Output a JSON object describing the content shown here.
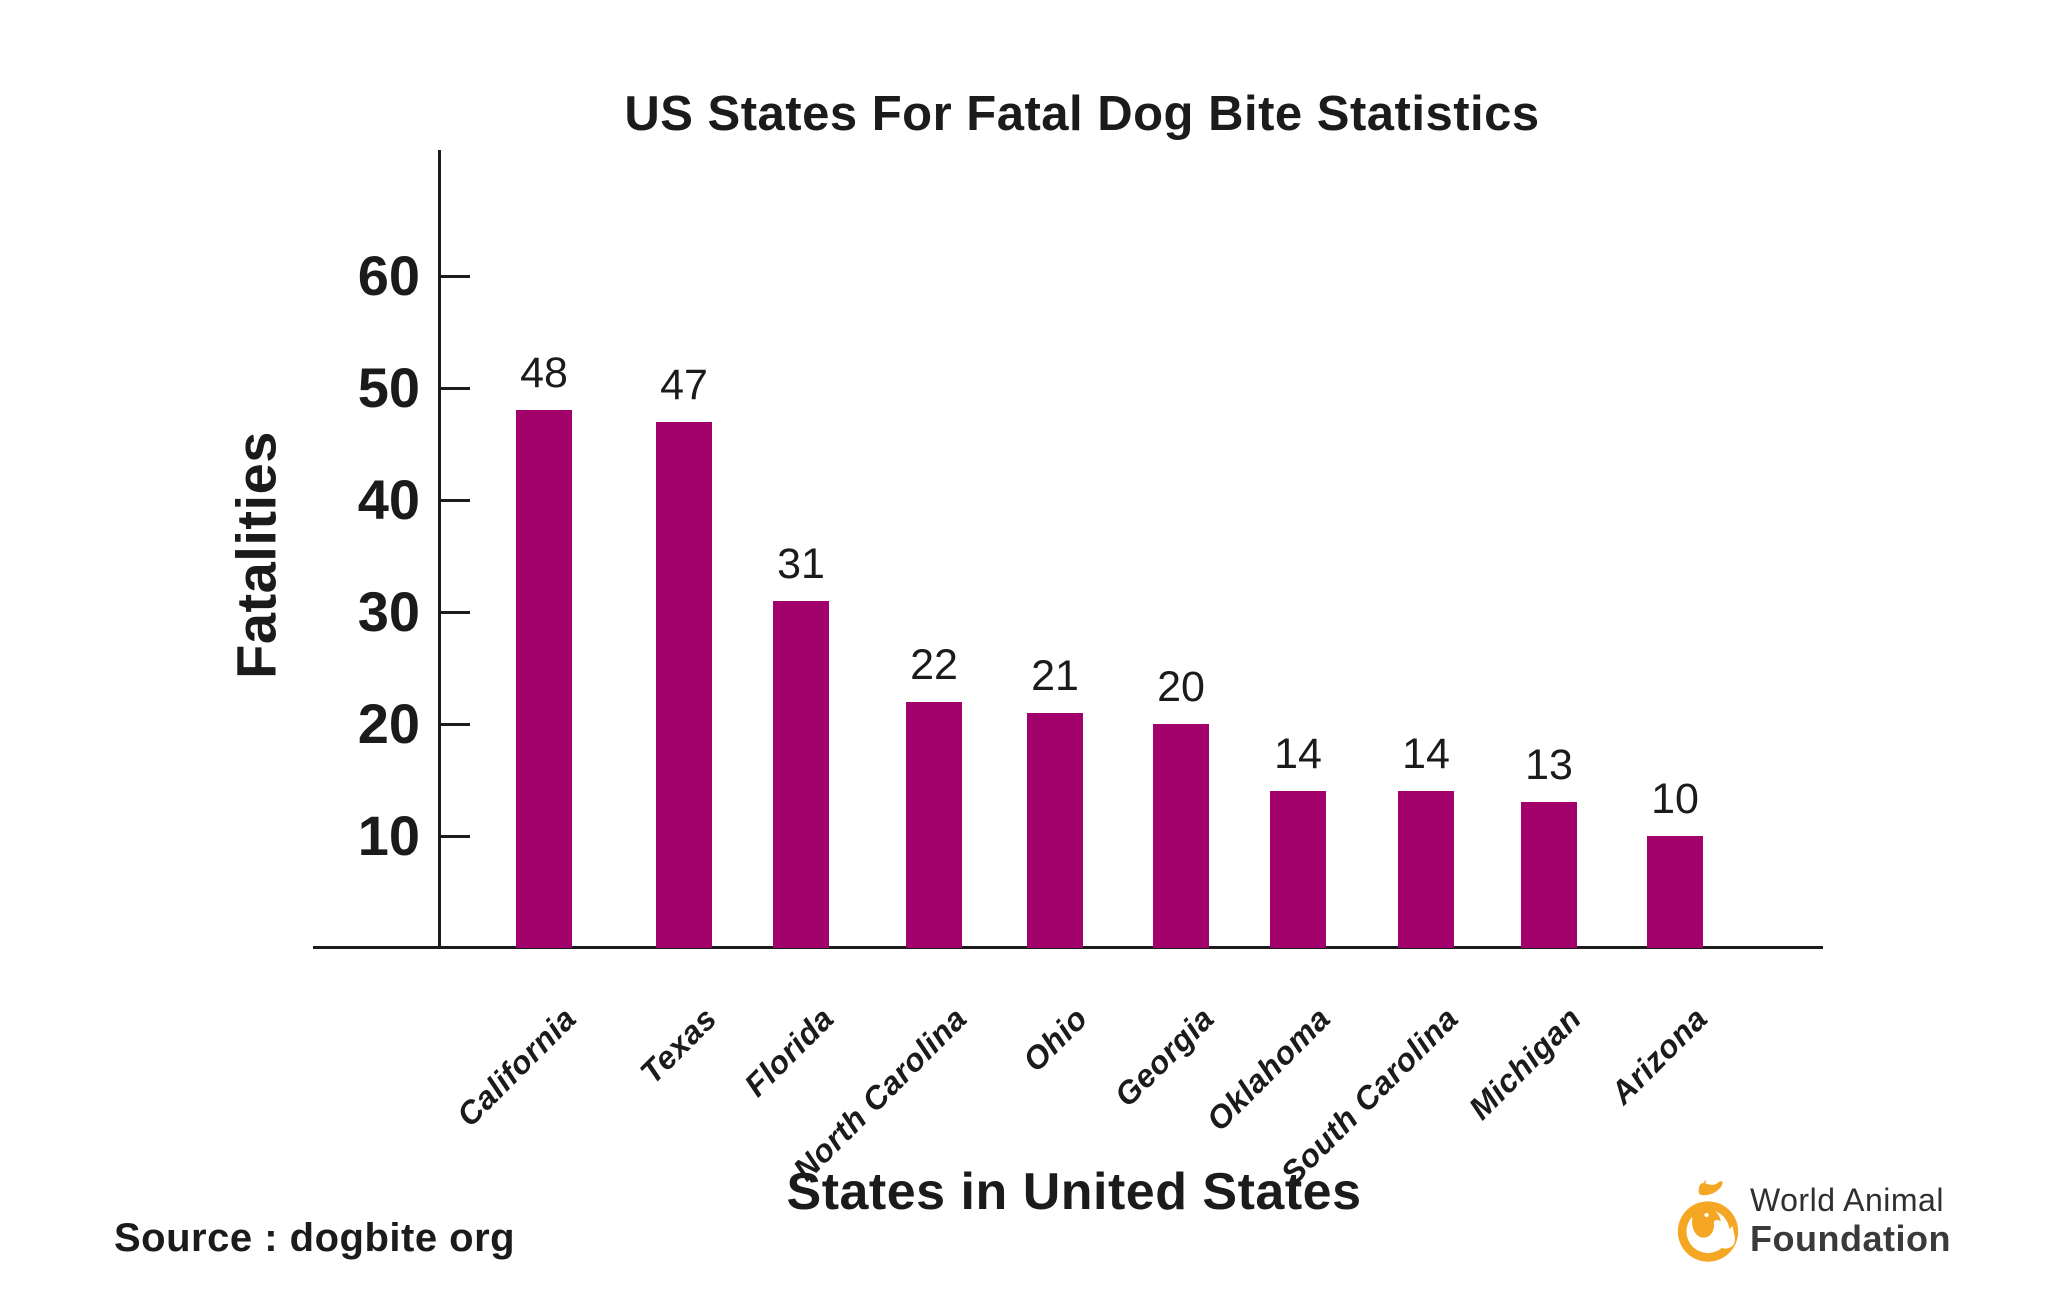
{
  "title": "US States For Fatal Dog Bite Statistics",
  "source": "Source : dogbite org",
  "logo": {
    "line1": "World Animal",
    "line2": "Foundation",
    "orange": "#F5A623"
  },
  "chart_data": {
    "type": "bar",
    "title": "US States For Fatal Dog Bite Statistics",
    "xlabel": "States in United States",
    "ylabel": "Fatalities",
    "categories": [
      "California",
      "Texas",
      "Florida",
      "North Carolina",
      "Ohio",
      "Georgia",
      "Oklahoma",
      "South Carolina",
      "Michigan",
      "Arizona"
    ],
    "values": [
      48,
      47,
      31,
      22,
      21,
      20,
      14,
      14,
      13,
      10
    ],
    "yticks": [
      10,
      20,
      30,
      40,
      50,
      60
    ],
    "ylim": [
      0,
      70
    ],
    "tick_interval": 10,
    "grid": false,
    "legend": false,
    "value_labels_shown": true,
    "bar_color": "#A3026D",
    "axis_color": "#1b1b1b",
    "text_color": "#1b1b1b"
  }
}
